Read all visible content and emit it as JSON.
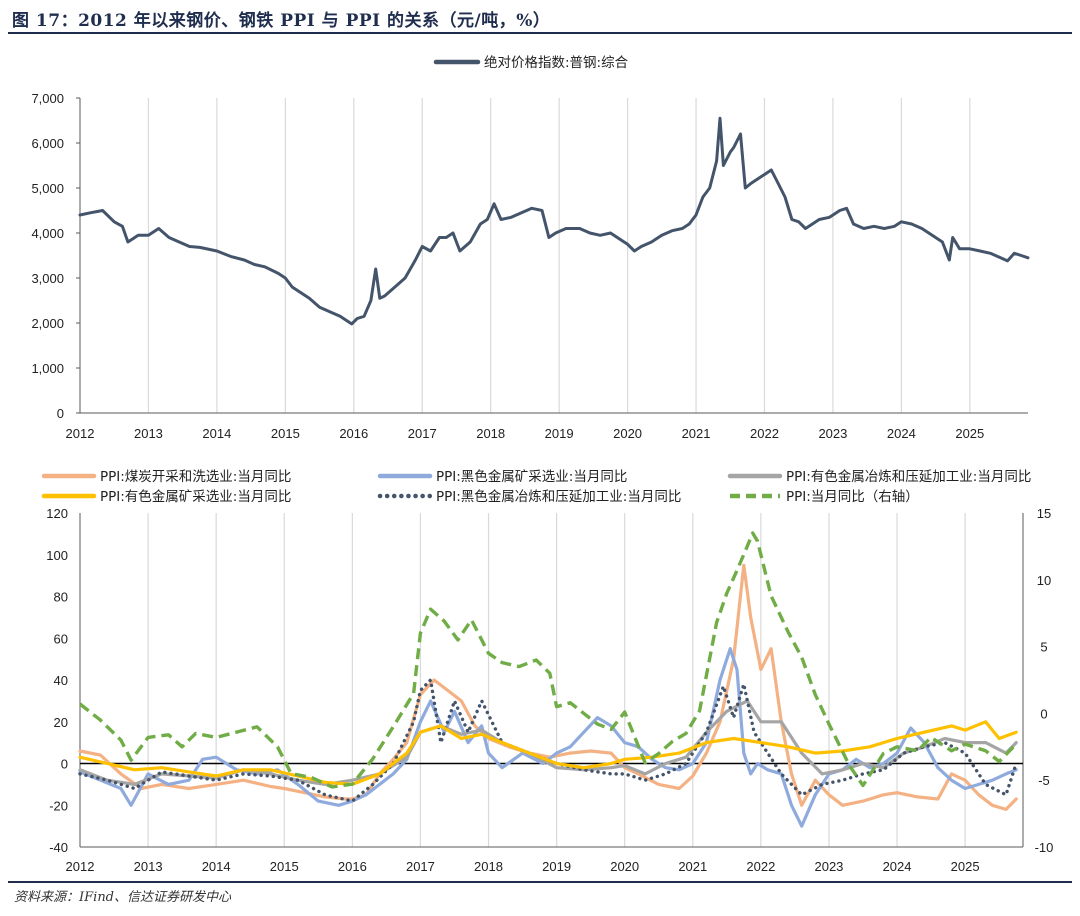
{
  "figure": {
    "title": "图 17：2012 年以来钢价、钢铁 PPI 与 PPI 的关系（元/吨，%）",
    "source": "资料来源：IFind、信达证券研发中心"
  },
  "chart_data": [
    {
      "type": "line",
      "title": "",
      "legend_position": "top-center",
      "x_ticks": [
        "2012",
        "2013",
        "2014",
        "2015",
        "2016",
        "2017",
        "2018",
        "2019",
        "2020",
        "2021",
        "2022",
        "2023",
        "2024",
        "2025"
      ],
      "x_range": [
        2012,
        2025.85
      ],
      "y_ticks": [
        "0",
        "1,000",
        "2,000",
        "3,000",
        "4,000",
        "5,000",
        "6,000",
        "7,000"
      ],
      "ylim": [
        0,
        7000
      ],
      "grid": "vertical",
      "series": [
        {
          "name": "绝对价格指数:普钢:综合",
          "color": "#44546a",
          "x": [
            2012.0,
            2012.15,
            2012.33,
            2012.5,
            2012.62,
            2012.7,
            2012.85,
            2013.0,
            2013.15,
            2013.3,
            2013.45,
            2013.6,
            2013.75,
            2014.0,
            2014.2,
            2014.4,
            2014.55,
            2014.7,
            2014.9,
            2015.0,
            2015.1,
            2015.2,
            2015.35,
            2015.5,
            2015.65,
            2015.8,
            2015.9,
            2015.97,
            2016.05,
            2016.15,
            2016.25,
            2016.32,
            2016.38,
            2016.45,
            2016.6,
            2016.75,
            2016.9,
            2017.0,
            2017.12,
            2017.25,
            2017.35,
            2017.45,
            2017.55,
            2017.7,
            2017.85,
            2017.95,
            2018.05,
            2018.15,
            2018.3,
            2018.45,
            2018.6,
            2018.75,
            2018.85,
            2018.95,
            2019.1,
            2019.3,
            2019.45,
            2019.6,
            2019.75,
            2019.9,
            2020.0,
            2020.1,
            2020.2,
            2020.35,
            2020.5,
            2020.65,
            2020.8,
            2020.9,
            2021.0,
            2021.1,
            2021.2,
            2021.3,
            2021.35,
            2021.4,
            2021.5,
            2021.55,
            2021.65,
            2021.72,
            2021.8,
            2021.9,
            2022.0,
            2022.1,
            2022.2,
            2022.3,
            2022.4,
            2022.5,
            2022.6,
            2022.7,
            2022.8,
            2022.95,
            2023.1,
            2023.2,
            2023.3,
            2023.45,
            2023.6,
            2023.75,
            2023.9,
            2024.0,
            2024.15,
            2024.3,
            2024.45,
            2024.6,
            2024.7,
            2024.75,
            2024.85,
            2025.0,
            2025.15,
            2025.3,
            2025.45,
            2025.55,
            2025.65,
            2025.75,
            2025.85
          ],
          "values": [
            4400,
            4450,
            4500,
            4250,
            4150,
            3800,
            3950,
            3950,
            4100,
            3900,
            3800,
            3700,
            3680,
            3600,
            3480,
            3400,
            3300,
            3250,
            3100,
            3000,
            2800,
            2700,
            2550,
            2350,
            2250,
            2150,
            2050,
            1980,
            2100,
            2150,
            2500,
            3200,
            2550,
            2600,
            2800,
            3000,
            3400,
            3700,
            3600,
            3900,
            3900,
            4000,
            3600,
            3800,
            4200,
            4300,
            4650,
            4300,
            4350,
            4450,
            4550,
            4500,
            3900,
            4000,
            4100,
            4100,
            4000,
            3950,
            4000,
            3850,
            3750,
            3600,
            3700,
            3800,
            3950,
            4050,
            4100,
            4200,
            4400,
            4800,
            5000,
            5600,
            6550,
            5500,
            5800,
            5900,
            6200,
            5000,
            5100,
            5200,
            5300,
            5400,
            5100,
            4800,
            4300,
            4250,
            4100,
            4200,
            4300,
            4350,
            4500,
            4550,
            4200,
            4100,
            4150,
            4100,
            4150,
            4250,
            4200,
            4100,
            3950,
            3800,
            3400,
            3900,
            3650,
            3650,
            3600,
            3550,
            3450,
            3380,
            3550,
            3500,
            3450
          ]
        }
      ]
    },
    {
      "type": "line",
      "title": "",
      "legend_position": "top",
      "x_ticks": [
        "2012",
        "2013",
        "2014",
        "2015",
        "2016",
        "2017",
        "2018",
        "2019",
        "2020",
        "2021",
        "2022",
        "2023",
        "2024",
        "2025"
      ],
      "x_range": [
        2012,
        2025.85
      ],
      "y_ticks_left": [
        "-40",
        "-20",
        "0",
        "20",
        "40",
        "60",
        "80",
        "100",
        "120"
      ],
      "ylim_left": [
        -40,
        120
      ],
      "y_ticks_right": [
        "-10",
        "-5",
        "0",
        "5",
        "10",
        "15"
      ],
      "ylim_right": [
        -10,
        15
      ],
      "grid": "vertical",
      "series": [
        {
          "name": "PPI:煤炭开采和洗选业:当月同比",
          "color": "#f4b183",
          "style": "solid",
          "axis": "left",
          "x": [
            2012.0,
            2012.3,
            2012.6,
            2012.9,
            2013.2,
            2013.6,
            2014.0,
            2014.4,
            2014.8,
            2015.0,
            2015.3,
            2015.6,
            2015.9,
            2016.0,
            2016.2,
            2016.4,
            2016.6,
            2016.8,
            2017.0,
            2017.2,
            2017.4,
            2017.6,
            2017.8,
            2018.0,
            2018.3,
            2018.6,
            2018.9,
            2019.2,
            2019.5,
            2019.8,
            2020.0,
            2020.2,
            2020.5,
            2020.8,
            2021.0,
            2021.2,
            2021.4,
            2021.6,
            2021.75,
            2021.85,
            2022.0,
            2022.15,
            2022.3,
            2022.45,
            2022.6,
            2022.8,
            2023.0,
            2023.2,
            2023.5,
            2023.8,
            2024.0,
            2024.3,
            2024.6,
            2024.8,
            2025.0,
            2025.2,
            2025.4,
            2025.6,
            2025.75
          ],
          "values": [
            6,
            4,
            -5,
            -12,
            -10,
            -12,
            -10,
            -8,
            -11,
            -12,
            -14,
            -16,
            -17,
            -17,
            -15,
            -5,
            2,
            10,
            33,
            40,
            35,
            30,
            18,
            12,
            8,
            5,
            3,
            5,
            6,
            5,
            -2,
            -5,
            -10,
            -12,
            -6,
            5,
            20,
            50,
            95,
            70,
            45,
            55,
            20,
            -5,
            -20,
            -8,
            -15,
            -20,
            -18,
            -15,
            -14,
            -16,
            -17,
            -5,
            -8,
            -15,
            -20,
            -22,
            -17
          ]
        },
        {
          "name": "PPI:黑色金属矿采选业:当月同比",
          "color": "#8faadc",
          "style": "solid",
          "axis": "left",
          "x": [
            2012.0,
            2012.3,
            2012.6,
            2012.75,
            2013.0,
            2013.3,
            2013.6,
            2013.8,
            2014.0,
            2014.3,
            2014.6,
            2014.9,
            2015.2,
            2015.5,
            2015.8,
            2016.0,
            2016.2,
            2016.4,
            2016.6,
            2016.8,
            2017.0,
            2017.15,
            2017.35,
            2017.5,
            2017.7,
            2017.9,
            2018.0,
            2018.2,
            2018.5,
            2018.8,
            2019.0,
            2019.2,
            2019.4,
            2019.6,
            2019.8,
            2020.0,
            2020.2,
            2020.4,
            2020.6,
            2020.8,
            2021.0,
            2021.2,
            2021.4,
            2021.55,
            2021.65,
            2021.75,
            2021.85,
            2021.95,
            2022.1,
            2022.3,
            2022.45,
            2022.6,
            2022.8,
            2023.0,
            2023.2,
            2023.4,
            2023.6,
            2023.8,
            2024.0,
            2024.2,
            2024.4,
            2024.6,
            2024.8,
            2025.0,
            2025.2,
            2025.4,
            2025.6,
            2025.75
          ],
          "values": [
            -4,
            -8,
            -12,
            -20,
            -5,
            -10,
            -8,
            2,
            3,
            -3,
            -5,
            -3,
            -10,
            -18,
            -20,
            -18,
            -15,
            -10,
            -5,
            2,
            20,
            30,
            15,
            25,
            10,
            18,
            5,
            -2,
            5,
            0,
            5,
            8,
            15,
            22,
            18,
            10,
            8,
            2,
            -2,
            -3,
            0,
            10,
            40,
            55,
            45,
            5,
            -5,
            0,
            -3,
            -5,
            -20,
            -30,
            -15,
            -5,
            -3,
            2,
            -2,
            0,
            5,
            17,
            10,
            -2,
            -8,
            -12,
            -10,
            -8,
            -5,
            -3
          ]
        },
        {
          "name": "PPI:有色金属冶炼和压延加工业:当月同比",
          "color": "#a5a5a5",
          "style": "solid",
          "axis": "left",
          "x": [
            2012.0,
            2012.4,
            2012.8,
            2013.2,
            2013.6,
            2014.0,
            2014.4,
            2014.8,
            2015.2,
            2015.6,
            2016.0,
            2016.4,
            2016.8,
            2017.0,
            2017.3,
            2017.6,
            2017.9,
            2018.2,
            2018.6,
            2019.0,
            2019.4,
            2019.8,
            2020.0,
            2020.3,
            2020.6,
            2020.9,
            2021.2,
            2021.5,
            2021.8,
            2022.0,
            2022.3,
            2022.6,
            2022.9,
            2023.2,
            2023.5,
            2023.8,
            2024.1,
            2024.4,
            2024.7,
            2025.0,
            2025.3,
            2025.6,
            2025.75
          ],
          "values": [
            -3,
            -8,
            -10,
            -5,
            -6,
            -7,
            -3,
            -5,
            -8,
            -10,
            -8,
            -5,
            3,
            15,
            18,
            14,
            16,
            10,
            5,
            -2,
            -3,
            -2,
            -1,
            -5,
            0,
            3,
            15,
            25,
            30,
            20,
            20,
            5,
            -5,
            -3,
            0,
            -2,
            5,
            8,
            12,
            10,
            10,
            5,
            10
          ]
        },
        {
          "name": "PPI:有色金属矿采选业:当月同比",
          "color": "#ffc000",
          "style": "solid",
          "axis": "left",
          "x": [
            2012.0,
            2012.4,
            2012.8,
            2013.2,
            2013.6,
            2014.0,
            2014.4,
            2014.8,
            2015.2,
            2015.6,
            2016.0,
            2016.4,
            2016.8,
            2017.0,
            2017.3,
            2017.6,
            2017.9,
            2018.2,
            2018.6,
            2019.0,
            2019.4,
            2019.8,
            2020.0,
            2020.4,
            2020.8,
            2021.2,
            2021.6,
            2022.0,
            2022.4,
            2022.8,
            2023.2,
            2023.6,
            2024.0,
            2024.4,
            2024.8,
            2025.0,
            2025.3,
            2025.5,
            2025.75
          ],
          "values": [
            3,
            0,
            -3,
            -2,
            -4,
            -6,
            -3,
            -3,
            -6,
            -9,
            -10,
            -5,
            5,
            15,
            18,
            12,
            14,
            10,
            5,
            0,
            -2,
            0,
            2,
            3,
            5,
            10,
            12,
            10,
            8,
            5,
            6,
            8,
            12,
            15,
            18,
            16,
            20,
            12,
            15
          ]
        },
        {
          "name": "PPI:黑色金属冶炼和压延加工业:当月同比",
          "color": "#44546a",
          "style": "dotted",
          "axis": "left",
          "x": [
            2012.0,
            2012.4,
            2012.8,
            2013.2,
            2013.6,
            2014.0,
            2014.4,
            2014.8,
            2015.2,
            2015.6,
            2016.0,
            2016.3,
            2016.6,
            2016.9,
            2017.0,
            2017.15,
            2017.3,
            2017.5,
            2017.7,
            2017.9,
            2018.2,
            2018.6,
            2019.0,
            2019.4,
            2019.8,
            2020.0,
            2020.3,
            2020.6,
            2020.9,
            2021.2,
            2021.45,
            2021.6,
            2021.75,
            2021.9,
            2022.1,
            2022.3,
            2022.6,
            2022.9,
            2023.2,
            2023.5,
            2023.8,
            2024.1,
            2024.4,
            2024.7,
            2025.0,
            2025.3,
            2025.6,
            2025.75
          ],
          "values": [
            -5,
            -8,
            -12,
            -4,
            -6,
            -8,
            -5,
            -6,
            -8,
            -15,
            -18,
            -10,
            0,
            20,
            35,
            40,
            10,
            30,
            15,
            30,
            10,
            5,
            0,
            -3,
            -5,
            -5,
            -8,
            -5,
            0,
            15,
            37,
            22,
            38,
            15,
            5,
            -5,
            -15,
            -10,
            -8,
            -5,
            -3,
            5,
            8,
            10,
            5,
            -10,
            -15,
            0
          ]
        },
        {
          "name": "PPI:当月同比（右轴）",
          "color": "#70ad47",
          "style": "dashed",
          "axis": "right",
          "x": [
            2012.0,
            2012.3,
            2012.6,
            2012.75,
            2013.0,
            2013.3,
            2013.5,
            2013.7,
            2014.0,
            2014.3,
            2014.6,
            2014.9,
            2015.1,
            2015.4,
            2015.7,
            2016.0,
            2016.3,
            2016.6,
            2016.9,
            2017.0,
            2017.15,
            2017.35,
            2017.55,
            2017.75,
            2018.0,
            2018.2,
            2018.45,
            2018.7,
            2018.9,
            2019.0,
            2019.2,
            2019.4,
            2019.6,
            2019.8,
            2020.0,
            2020.3,
            2020.5,
            2020.7,
            2020.9,
            2021.1,
            2021.35,
            2021.5,
            2021.65,
            2021.8,
            2021.88,
            2021.95,
            2022.15,
            2022.4,
            2022.6,
            2022.8,
            2023.0,
            2023.3,
            2023.5,
            2023.8,
            2024.0,
            2024.3,
            2024.5,
            2024.8,
            2025.0,
            2025.3,
            2025.5,
            2025.75
          ],
          "values": [
            0.7,
            -0.5,
            -2.0,
            -3.5,
            -1.8,
            -1.6,
            -2.5,
            -1.5,
            -1.8,
            -1.4,
            -1.0,
            -2.5,
            -4.5,
            -4.8,
            -5.5,
            -5.3,
            -3.4,
            -1.0,
            1.5,
            6.0,
            7.8,
            6.9,
            5.5,
            7.0,
            4.5,
            3.8,
            3.5,
            4.0,
            3.0,
            0.5,
            0.8,
            0.0,
            -0.8,
            -1.2,
            0.1,
            -3.7,
            -3.0,
            -2.1,
            -1.5,
            0.2,
            6.8,
            9.0,
            10.7,
            12.5,
            13.5,
            12.9,
            8.8,
            6.1,
            4.2,
            1.4,
            -0.8,
            -3.9,
            -5.4,
            -3.0,
            -2.5,
            -2.8,
            -1.8,
            -2.8,
            -2.3,
            -2.8,
            -3.6,
            -2.3
          ]
        }
      ]
    }
  ]
}
